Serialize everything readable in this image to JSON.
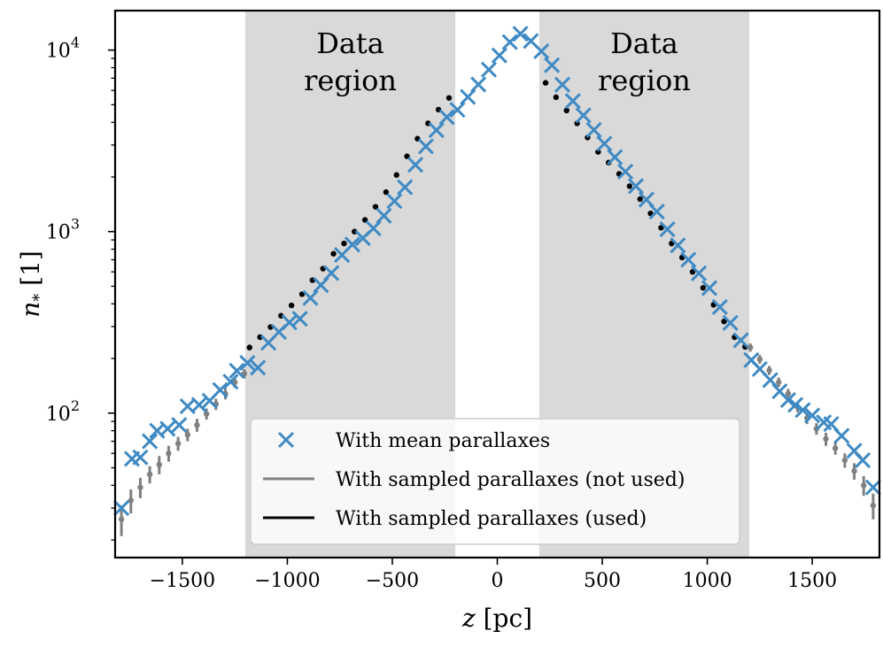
{
  "chart_data": {
    "type": "scatter",
    "xlabel_var": "z",
    "xlabel_unit": "[pc]",
    "ylabel_var": "n",
    "ylabel_sub": "*",
    "ylabel_unit": "[1]",
    "xlim": [
      -1820,
      1820
    ],
    "ylim": [
      16,
      16500
    ],
    "yscale": "log",
    "x_ticks": [
      -1500,
      -1000,
      -500,
      0,
      500,
      1000,
      1500
    ],
    "x_tick_labels": [
      "−1500",
      "−1000",
      "−500",
      "0",
      "500",
      "1000",
      "1500"
    ],
    "y_major_ticks": [
      {
        "value": 100,
        "base": "10",
        "exp": "2"
      },
      {
        "value": 1000,
        "base": "10",
        "exp": "3"
      },
      {
        "value": 10000,
        "base": "10",
        "exp": "4"
      }
    ],
    "data_regions": [
      {
        "x0": -1200,
        "x1": -200,
        "label_line1": "Data",
        "label_line2": "region"
      },
      {
        "x0": 200,
        "x1": 1200,
        "label_line1": "Data",
        "label_line2": "region"
      }
    ],
    "colors": {
      "mean": "#3f8ac4",
      "sampled_unused": "#808080",
      "sampled_used": "#000000",
      "region": "#d9d9d9"
    },
    "legend": {
      "placement": "lower center",
      "entries": [
        {
          "label": "With mean parallaxes",
          "marker": "x",
          "color": "#3f8ac4"
        },
        {
          "label": "With sampled parallaxes (not used)",
          "marker": "line",
          "color": "#808080"
        },
        {
          "label": "With sampled parallaxes (used)",
          "marker": "line",
          "color": "#000000"
        }
      ]
    },
    "series": [
      {
        "name": "With mean parallaxes",
        "marker": "x",
        "x": [
          -1790,
          -1740,
          -1700,
          -1655,
          -1620,
          -1570,
          -1515,
          -1475,
          -1420,
          -1370,
          -1320,
          -1270,
          -1240,
          -1190,
          -1140,
          -1090,
          -1040,
          -990,
          -940,
          -890,
          -840,
          -790,
          -740,
          -690,
          -640,
          -590,
          -540,
          -490,
          -440,
          -390,
          -340,
          -290,
          -240,
          -190,
          -140,
          -90,
          -40,
          10,
          60,
          110,
          160,
          210,
          260,
          310,
          360,
          410,
          460,
          510,
          560,
          610,
          660,
          710,
          760,
          810,
          860,
          910,
          960,
          1010,
          1060,
          1110,
          1160,
          1210,
          1250,
          1300,
          1345,
          1385,
          1420,
          1455,
          1500,
          1555,
          1590,
          1640,
          1700,
          1740,
          1790
        ],
        "y": [
          30,
          56,
          57,
          70,
          80,
          82,
          86,
          109,
          111,
          117,
          134,
          149,
          171,
          189,
          178,
          244,
          280,
          316,
          331,
          431,
          507,
          591,
          744,
          849,
          920,
          1042,
          1223,
          1473,
          1755,
          2334,
          2945,
          3620,
          4275,
          4690,
          5517,
          6462,
          7802,
          9342,
          11063,
          12300,
          11220,
          9850,
          8250,
          6450,
          5240,
          4370,
          3630,
          3050,
          2570,
          2140,
          1780,
          1500,
          1290,
          1030,
          840,
          700,
          589,
          488,
          384,
          314,
          252,
          196,
          175,
          152,
          132,
          118,
          111,
          104,
          97,
          89,
          87,
          75,
          62,
          55,
          39
        ]
      },
      {
        "name": "With sampled parallaxes (not used)",
        "marker": "errorbar",
        "x": [
          -1790,
          -1745,
          -1700,
          -1655,
          -1610,
          -1565,
          -1520,
          -1475,
          -1430,
          -1385,
          -1340,
          -1295,
          -1250,
          -1205,
          1205,
          1250,
          1295,
          1340,
          1385,
          1430,
          1475,
          1520,
          1565,
          1610,
          1655,
          1700,
          1745,
          1790
        ],
        "y": [
          26,
          33,
          39,
          46,
          52,
          60,
          68,
          76,
          86,
          99,
          112,
          128,
          148,
          165,
          230,
          198,
          172,
          148,
          128,
          108,
          94,
          82,
          72,
          64,
          55,
          48,
          40,
          31
        ],
        "err": [
          5,
          5,
          5,
          5,
          6,
          6,
          6,
          6,
          7,
          7,
          8,
          9,
          10,
          10,
          12,
          11,
          10,
          9,
          8,
          7,
          7,
          6,
          6,
          5,
          5,
          5,
          5,
          5
        ]
      },
      {
        "name": "With sampled parallaxes (used)",
        "marker": "errorbar",
        "x": [
          -1180,
          -1130,
          -1080,
          -1030,
          -980,
          -930,
          -880,
          -830,
          -780,
          -730,
          -680,
          -630,
          -580,
          -530,
          -480,
          -430,
          -380,
          -330,
          -280,
          -230,
          230,
          280,
          330,
          380,
          430,
          480,
          530,
          580,
          630,
          680,
          730,
          780,
          830,
          880,
          930,
          980,
          1030,
          1080,
          1130,
          1180
        ],
        "y": [
          230,
          262,
          298,
          344,
          392,
          452,
          540,
          625,
          755,
          860,
          1000,
          1160,
          1370,
          1650,
          2050,
          2600,
          3250,
          3950,
          4700,
          5450,
          6600,
          5500,
          4650,
          3950,
          3300,
          2750,
          2400,
          2080,
          1780,
          1510,
          1260,
          1050,
          860,
          720,
          600,
          490,
          395,
          320,
          262,
          232
        ],
        "err": [
          8,
          8,
          8,
          9,
          9,
          10,
          10,
          12,
          12,
          14,
          15,
          18,
          20,
          22,
          25,
          30,
          35,
          40,
          45,
          50,
          55,
          50,
          45,
          40,
          35,
          30,
          28,
          25,
          22,
          20,
          18,
          15,
          13,
          12,
          11,
          10,
          9,
          8,
          8,
          8
        ]
      }
    ]
  }
}
